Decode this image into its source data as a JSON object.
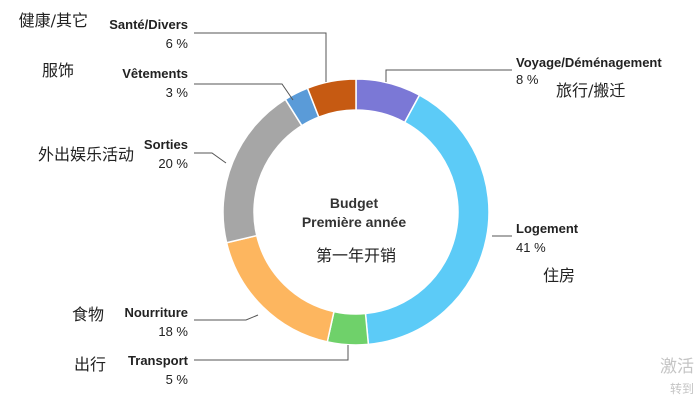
{
  "chart_data": {
    "type": "pie",
    "donut": true,
    "center_title": [
      "Budget",
      "Première année"
    ],
    "center_subtitle_cn": "第一年开销",
    "slices": [
      {
        "key": "voyage",
        "label": "Voyage/Déménagement",
        "pct_label": "8 %",
        "value": 8,
        "cn": "旅行/搬迁",
        "color": "#7b78d6"
      },
      {
        "key": "logement",
        "label": "Logement",
        "pct_label": "41 %",
        "value": 41,
        "cn": "住房",
        "color": "#5ccbf7"
      },
      {
        "key": "transport",
        "label": "Transport",
        "pct_label": "5 %",
        "value": 5,
        "cn": "出行",
        "color": "#6fd16a"
      },
      {
        "key": "nourriture",
        "label": "Nourriture",
        "pct_label": "18 %",
        "value": 18,
        "cn": "食物",
        "color": "#fdb65f"
      },
      {
        "key": "sorties",
        "label": "Sorties",
        "pct_label": "20 %",
        "value": 20,
        "cn": "外出娱乐活动",
        "color": "#a6a6a6"
      },
      {
        "key": "vetements",
        "label": "Vêtements",
        "pct_label": "3 %",
        "value": 3,
        "cn": "服饰",
        "color": "#5a9bd8"
      },
      {
        "key": "sante",
        "label": "Santé/Divers",
        "pct_label": "6 %",
        "value": 6,
        "cn": "健康/其它",
        "color": "#c65a12"
      }
    ]
  },
  "watermark": {
    "line1": "激活",
    "line2": "转到"
  }
}
